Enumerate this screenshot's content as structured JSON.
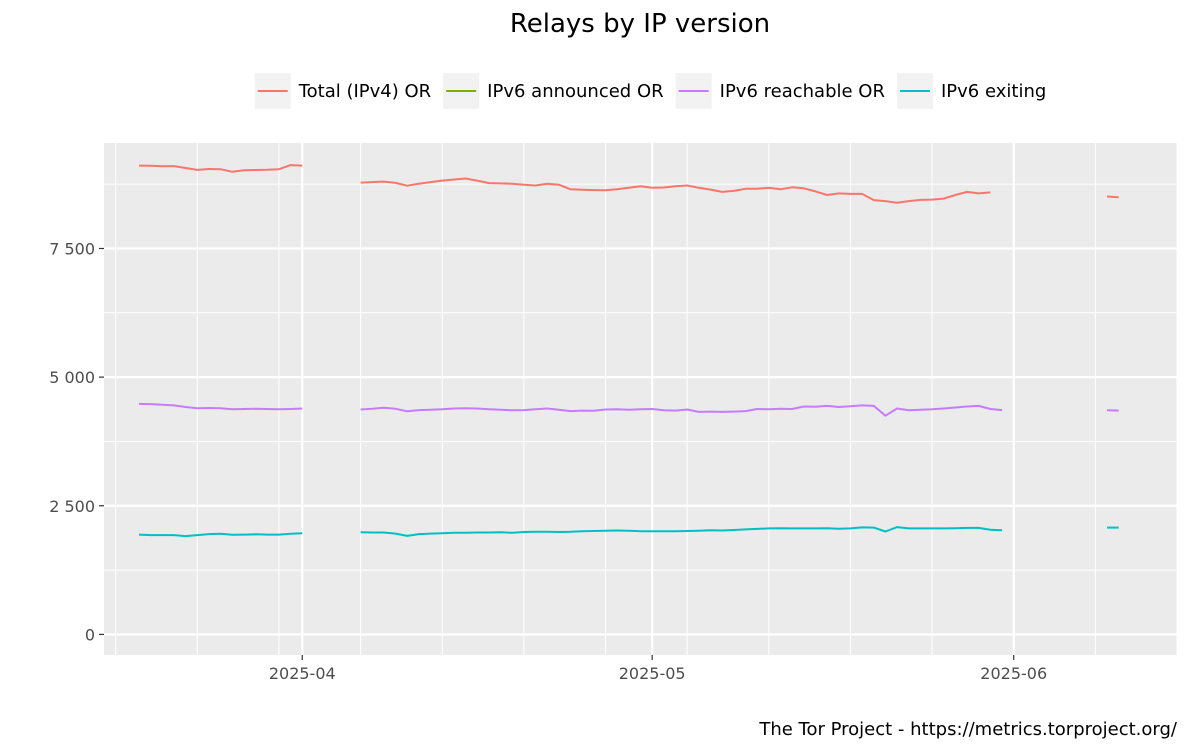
{
  "chart_data": {
    "type": "line",
    "title": "Relays by IP version",
    "caption": "The Tor Project - https://metrics.torproject.org/",
    "legend_position": "top",
    "grid": true,
    "xlim": [
      "2025-03-15",
      "2025-06-15"
    ],
    "ylim": [
      -400,
      9550
    ],
    "y_ticks": [
      {
        "value": 0,
        "label": "0"
      },
      {
        "value": 2500,
        "label": "2 500"
      },
      {
        "value": 5000,
        "label": "5 000"
      },
      {
        "value": 7500,
        "label": "7 500"
      }
    ],
    "x_ticks": [
      {
        "date": "2025-04-01",
        "label": "2025-04"
      },
      {
        "date": "2025-05-01",
        "label": "2025-05"
      },
      {
        "date": "2025-06-01",
        "label": "2025-06"
      }
    ],
    "x_minor_ticks": [
      "2025-03-16",
      "2025-03-23",
      "2025-03-30",
      "2025-04-06",
      "2025-04-13",
      "2025-04-20",
      "2025-04-27",
      "2025-05-04",
      "2025-05-11",
      "2025-05-18",
      "2025-05-25",
      "2025-06-08",
      "2025-06-15"
    ],
    "y_minor_ticks": [
      1250,
      3750,
      6250,
      8750
    ],
    "series": [
      {
        "name": "Total (IPv4) OR",
        "color": "#F8766D",
        "segments": [
          [
            [
              "2025-03-18",
              9110
            ],
            [
              "2025-03-19",
              9108
            ],
            [
              "2025-03-20",
              9100
            ],
            [
              "2025-03-21",
              9102
            ],
            [
              "2025-03-22",
              9065
            ],
            [
              "2025-03-23",
              9028
            ],
            [
              "2025-03-24",
              9045
            ],
            [
              "2025-03-25",
              9040
            ],
            [
              "2025-03-26",
              8990
            ],
            [
              "2025-03-27",
              9020
            ],
            [
              "2025-03-28",
              9025
            ],
            [
              "2025-03-29",
              9030
            ],
            [
              "2025-03-30",
              9040
            ],
            [
              "2025-03-31",
              9120
            ],
            [
              "2025-04-01",
              9110
            ]
          ],
          [
            [
              "2025-04-06",
              8780
            ],
            [
              "2025-04-07",
              8790
            ],
            [
              "2025-04-08",
              8800
            ],
            [
              "2025-04-09",
              8775
            ],
            [
              "2025-04-10",
              8720
            ],
            [
              "2025-04-11",
              8760
            ],
            [
              "2025-04-12",
              8790
            ],
            [
              "2025-04-13",
              8820
            ],
            [
              "2025-04-14",
              8840
            ],
            [
              "2025-04-15",
              8860
            ],
            [
              "2025-04-16",
              8820
            ],
            [
              "2025-04-17",
              8770
            ],
            [
              "2025-04-18",
              8765
            ],
            [
              "2025-04-19",
              8760
            ],
            [
              "2025-04-20",
              8740
            ],
            [
              "2025-04-21",
              8725
            ],
            [
              "2025-04-22",
              8760
            ],
            [
              "2025-04-23",
              8740
            ],
            [
              "2025-04-24",
              8650
            ],
            [
              "2025-04-25",
              8640
            ],
            [
              "2025-04-26",
              8635
            ],
            [
              "2025-04-27",
              8630
            ],
            [
              "2025-04-28",
              8650
            ],
            [
              "2025-04-29",
              8680
            ],
            [
              "2025-04-30",
              8710
            ],
            [
              "2025-05-01",
              8680
            ],
            [
              "2025-05-02",
              8685
            ],
            [
              "2025-05-03",
              8710
            ],
            [
              "2025-05-04",
              8725
            ],
            [
              "2025-05-05",
              8680
            ],
            [
              "2025-05-06",
              8645
            ],
            [
              "2025-05-07",
              8600
            ],
            [
              "2025-05-08",
              8620
            ],
            [
              "2025-05-09",
              8660
            ],
            [
              "2025-05-10",
              8660
            ],
            [
              "2025-05-11",
              8680
            ],
            [
              "2025-05-12",
              8650
            ],
            [
              "2025-05-13",
              8690
            ],
            [
              "2025-05-14",
              8670
            ],
            [
              "2025-05-15",
              8610
            ],
            [
              "2025-05-16",
              8540
            ],
            [
              "2025-05-17",
              8570
            ],
            [
              "2025-05-18",
              8560
            ],
            [
              "2025-05-19",
              8560
            ],
            [
              "2025-05-20",
              8440
            ],
            [
              "2025-05-21",
              8420
            ],
            [
              "2025-05-22",
              8390
            ],
            [
              "2025-05-23",
              8420
            ],
            [
              "2025-05-24",
              8445
            ],
            [
              "2025-05-25",
              8450
            ],
            [
              "2025-05-26",
              8470
            ],
            [
              "2025-05-27",
              8540
            ],
            [
              "2025-05-28",
              8600
            ],
            [
              "2025-05-29",
              8570
            ],
            [
              "2025-05-30",
              8590
            ]
          ],
          [
            [
              "2025-06-09",
              8510
            ],
            [
              "2025-06-10",
              8495
            ]
          ]
        ]
      },
      {
        "name": "IPv6 announced OR",
        "color": "#7CAE00",
        "segments": []
      },
      {
        "name": "IPv6 reachable OR",
        "color": "#C77CFF",
        "segments": [
          [
            [
              "2025-03-18",
              4480
            ],
            [
              "2025-03-19",
              4475
            ],
            [
              "2025-03-20",
              4465
            ],
            [
              "2025-03-21",
              4450
            ],
            [
              "2025-03-22",
              4420
            ],
            [
              "2025-03-23",
              4395
            ],
            [
              "2025-03-24",
              4400
            ],
            [
              "2025-03-25",
              4395
            ],
            [
              "2025-03-26",
              4375
            ],
            [
              "2025-03-27",
              4380
            ],
            [
              "2025-03-28",
              4385
            ],
            [
              "2025-03-29",
              4380
            ],
            [
              "2025-03-30",
              4375
            ],
            [
              "2025-03-31",
              4380
            ],
            [
              "2025-04-01",
              4390
            ]
          ],
          [
            [
              "2025-04-06",
              4370
            ],
            [
              "2025-04-07",
              4385
            ],
            [
              "2025-04-08",
              4405
            ],
            [
              "2025-04-09",
              4385
            ],
            [
              "2025-04-10",
              4335
            ],
            [
              "2025-04-11",
              4360
            ],
            [
              "2025-04-12",
              4365
            ],
            [
              "2025-04-13",
              4375
            ],
            [
              "2025-04-14",
              4390
            ],
            [
              "2025-04-15",
              4395
            ],
            [
              "2025-04-16",
              4390
            ],
            [
              "2025-04-17",
              4375
            ],
            [
              "2025-04-18",
              4365
            ],
            [
              "2025-04-19",
              4355
            ],
            [
              "2025-04-20",
              4360
            ],
            [
              "2025-04-21",
              4375
            ],
            [
              "2025-04-22",
              4390
            ],
            [
              "2025-04-23",
              4365
            ],
            [
              "2025-04-24",
              4340
            ],
            [
              "2025-04-25",
              4350
            ],
            [
              "2025-04-26",
              4345
            ],
            [
              "2025-04-27",
              4370
            ],
            [
              "2025-04-28",
              4375
            ],
            [
              "2025-04-29",
              4365
            ],
            [
              "2025-04-30",
              4375
            ],
            [
              "2025-05-01",
              4380
            ],
            [
              "2025-05-02",
              4355
            ],
            [
              "2025-05-03",
              4350
            ],
            [
              "2025-05-04",
              4370
            ],
            [
              "2025-05-05",
              4325
            ],
            [
              "2025-05-06",
              4330
            ],
            [
              "2025-05-07",
              4325
            ],
            [
              "2025-05-08",
              4330
            ],
            [
              "2025-05-09",
              4340
            ],
            [
              "2025-05-10",
              4380
            ],
            [
              "2025-05-11",
              4375
            ],
            [
              "2025-05-12",
              4385
            ],
            [
              "2025-05-13",
              4380
            ],
            [
              "2025-05-14",
              4430
            ],
            [
              "2025-05-15",
              4425
            ],
            [
              "2025-05-16",
              4440
            ],
            [
              "2025-05-17",
              4420
            ],
            [
              "2025-05-18",
              4435
            ],
            [
              "2025-05-19",
              4450
            ],
            [
              "2025-05-20",
              4440
            ],
            [
              "2025-05-21",
              4250
            ],
            [
              "2025-05-22",
              4390
            ],
            [
              "2025-05-23",
              4355
            ],
            [
              "2025-05-24",
              4365
            ],
            [
              "2025-05-25",
              4375
            ],
            [
              "2025-05-26",
              4390
            ],
            [
              "2025-05-27",
              4410
            ],
            [
              "2025-05-28",
              4430
            ],
            [
              "2025-05-29",
              4440
            ],
            [
              "2025-05-30",
              4380
            ],
            [
              "2025-05-31",
              4360
            ]
          ],
          [
            [
              "2025-06-09",
              4355
            ],
            [
              "2025-06-10",
              4350
            ]
          ]
        ]
      },
      {
        "name": "IPv6 exiting",
        "color": "#00BFC4",
        "segments": [
          [
            [
              "2025-03-18",
              1940
            ],
            [
              "2025-03-19",
              1930
            ],
            [
              "2025-03-20",
              1930
            ],
            [
              "2025-03-21",
              1930
            ],
            [
              "2025-03-22",
              1910
            ],
            [
              "2025-03-23",
              1930
            ],
            [
              "2025-03-24",
              1950
            ],
            [
              "2025-03-25",
              1955
            ],
            [
              "2025-03-26",
              1935
            ],
            [
              "2025-03-27",
              1940
            ],
            [
              "2025-03-28",
              1945
            ],
            [
              "2025-03-29",
              1940
            ],
            [
              "2025-03-30",
              1940
            ],
            [
              "2025-03-31",
              1955
            ],
            [
              "2025-04-01",
              1965
            ]
          ],
          [
            [
              "2025-04-06",
              1985
            ],
            [
              "2025-04-07",
              1980
            ],
            [
              "2025-04-08",
              1980
            ],
            [
              "2025-04-09",
              1960
            ],
            [
              "2025-04-10",
              1915
            ],
            [
              "2025-04-11",
              1950
            ],
            [
              "2025-04-12",
              1960
            ],
            [
              "2025-04-13",
              1965
            ],
            [
              "2025-04-14",
              1975
            ],
            [
              "2025-04-15",
              1975
            ],
            [
              "2025-04-16",
              1980
            ],
            [
              "2025-04-17",
              1980
            ],
            [
              "2025-04-18",
              1985
            ],
            [
              "2025-04-19",
              1975
            ],
            [
              "2025-04-20",
              1990
            ],
            [
              "2025-04-21",
              1995
            ],
            [
              "2025-04-22",
              1995
            ],
            [
              "2025-04-23",
              1990
            ],
            [
              "2025-04-24",
              1995
            ],
            [
              "2025-04-25",
              2005
            ],
            [
              "2025-04-26",
              2010
            ],
            [
              "2025-04-27",
              2015
            ],
            [
              "2025-04-28",
              2020
            ],
            [
              "2025-04-29",
              2015
            ],
            [
              "2025-04-30",
              2005
            ],
            [
              "2025-05-01",
              2005
            ],
            [
              "2025-05-02",
              2005
            ],
            [
              "2025-05-03",
              2005
            ],
            [
              "2025-05-04",
              2010
            ],
            [
              "2025-05-05",
              2015
            ],
            [
              "2025-05-06",
              2025
            ],
            [
              "2025-05-07",
              2020
            ],
            [
              "2025-05-08",
              2030
            ],
            [
              "2025-05-09",
              2040
            ],
            [
              "2025-05-10",
              2050
            ],
            [
              "2025-05-11",
              2060
            ],
            [
              "2025-05-12",
              2065
            ],
            [
              "2025-05-13",
              2060
            ],
            [
              "2025-05-14",
              2060
            ],
            [
              "2025-05-15",
              2060
            ],
            [
              "2025-05-16",
              2065
            ],
            [
              "2025-05-17",
              2055
            ],
            [
              "2025-05-18",
              2060
            ],
            [
              "2025-05-19",
              2080
            ],
            [
              "2025-05-20",
              2075
            ],
            [
              "2025-05-21",
              2000
            ],
            [
              "2025-05-22",
              2085
            ],
            [
              "2025-05-23",
              2060
            ],
            [
              "2025-05-24",
              2060
            ],
            [
              "2025-05-25",
              2060
            ],
            [
              "2025-05-26",
              2060
            ],
            [
              "2025-05-27",
              2065
            ],
            [
              "2025-05-28",
              2070
            ],
            [
              "2025-05-29",
              2070
            ],
            [
              "2025-05-30",
              2035
            ],
            [
              "2025-05-31",
              2025
            ]
          ],
          [
            [
              "2025-06-09",
              2075
            ],
            [
              "2025-06-10",
              2075
            ]
          ]
        ]
      }
    ]
  }
}
